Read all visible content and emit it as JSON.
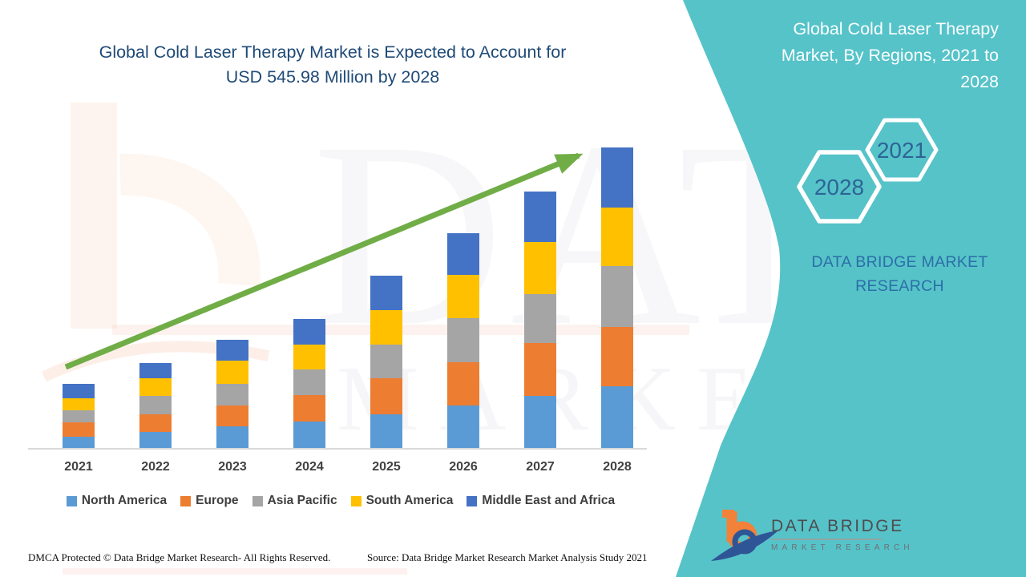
{
  "main_title": {
    "line1": "Global Cold Laser Therapy Market is Expected to Account for",
    "line2": "USD 545.98 Million by 2028"
  },
  "side_panel": {
    "background_color": "#56C3C9",
    "title_lines": [
      "Global Cold Laser Therapy",
      "Market, By Regions, 2021 to",
      "2028"
    ],
    "hexagon_left_year": "2028",
    "hexagon_right_year": "2021",
    "hexagon_year_color": "#2D6496",
    "brand_line1": "DATA BRIDGE MARKET",
    "brand_line2": "RESEARCH",
    "brand_color": "#2C6FA8"
  },
  "watermark": {
    "text_top": "DATA BRIDGE",
    "text_bottom": "MARKET RESEARCH"
  },
  "footer": {
    "dmca": "DMCA Protected © Data Bridge Market Research- All Rights Reserved.",
    "source": "Source: Data Bridge Market Research Market Analysis Study 2021"
  },
  "logo": {
    "name": "DATA BRIDGE",
    "subname": "MARKET RESEARCH",
    "orange": "#F28139",
    "navy": "#2E5596"
  },
  "chart_data": {
    "type": "bar",
    "stacked": true,
    "title": "Global Cold Laser Therapy Market is Expected to Account for USD 545.98 Million by 2028",
    "unit": "USD Million (estimated from bar heights; 2028 total stated as 545.98)",
    "categories": [
      "2021",
      "2022",
      "2023",
      "2024",
      "2025",
      "2026",
      "2027",
      "2028"
    ],
    "series": [
      {
        "name": "North America",
        "color": "#5B9BD5",
        "values": [
          22,
          31,
          40,
          50,
          63,
          79,
          96,
          112.98
        ]
      },
      {
        "name": "Europe",
        "color": "#ED7D31",
        "values": [
          26,
          32,
          39,
          47,
          64,
          77,
          95,
          107
        ]
      },
      {
        "name": "Asia Pacific",
        "color": "#A5A5A5",
        "values": [
          22,
          32,
          39,
          46,
          62,
          80,
          89,
          110
        ]
      },
      {
        "name": "South America",
        "color": "#FFC000",
        "values": [
          22,
          32,
          42,
          45,
          62,
          78,
          94,
          107
        ]
      },
      {
        "name": "Middle East and Africa",
        "color": "#4472C4",
        "values": [
          25,
          28,
          37,
          47,
          62,
          76,
          92,
          109
        ]
      }
    ],
    "totals": [
      117,
      155,
      197,
      235,
      313,
      390,
      466,
      545.98
    ],
    "trend_arrow": true,
    "trend_arrow_color": "#70AD47",
    "y_axis_visible": false,
    "gridlines": false,
    "legend_position": "bottom"
  }
}
